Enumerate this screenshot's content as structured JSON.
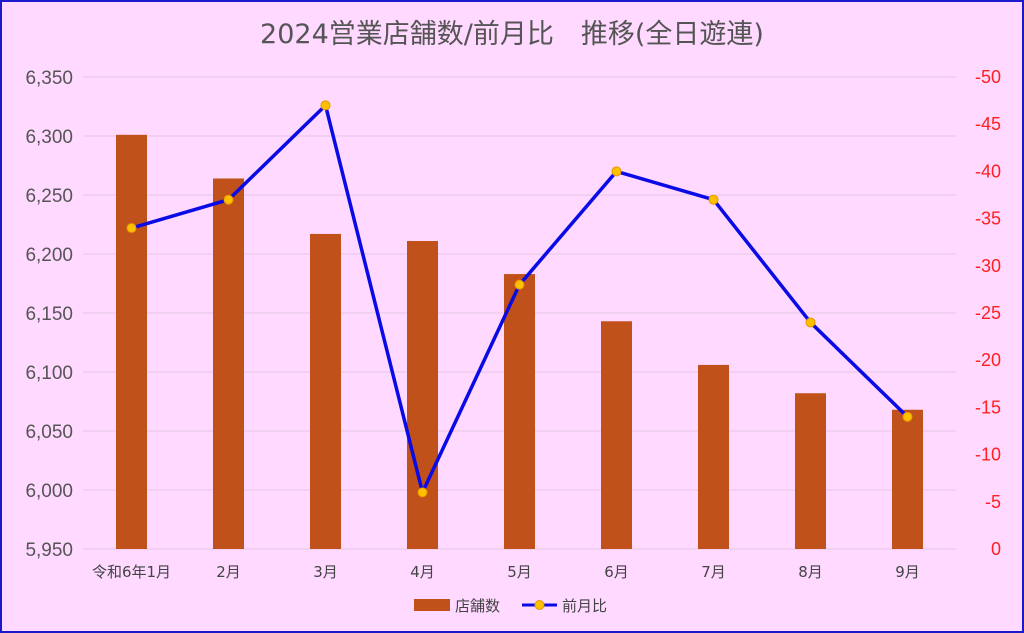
{
  "chart_data": {
    "type": "bar",
    "title": "2024営業店舗数/前月比　推移(全日遊連)",
    "categories": [
      "令和6年1月",
      "2月",
      "3月",
      "4月",
      "5月",
      "6月",
      "7月",
      "8月",
      "9月"
    ],
    "series": [
      {
        "name": "店舗数",
        "type": "bar",
        "axis": "left",
        "color": "#c0511a",
        "values": [
          6301,
          6264,
          6217,
          6211,
          6183,
          6143,
          6106,
          6082,
          6068
        ]
      },
      {
        "name": "前月比",
        "type": "line",
        "axis": "right",
        "color": "#0a0ae6",
        "marker_color": "#ffc000",
        "values": [
          -34,
          -37,
          -47,
          -6,
          -28,
          -40,
          -37,
          -24,
          -14
        ]
      }
    ],
    "left_axis": {
      "ylim": [
        5950,
        6350
      ],
      "ticks": [
        "6,350",
        "6,300",
        "6,250",
        "6,200",
        "6,150",
        "6,100",
        "6,050",
        "6,000",
        "5,950"
      ]
    },
    "right_axis": {
      "ylim": [
        0,
        -50
      ],
      "reversed": true,
      "ticks": [
        "-50",
        "-45",
        "-40",
        "-35",
        "-30",
        "-25",
        "-20",
        "-15",
        "-10",
        "-5",
        "0"
      ],
      "color": "#ff2020"
    },
    "grid": true,
    "legend": "bottom-center",
    "background": "#ffd9ff",
    "border_color": "#1a1acc"
  }
}
